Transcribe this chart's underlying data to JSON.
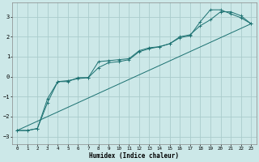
{
  "xlabel": "Humidex (Indice chaleur)",
  "background_color": "#cce8e8",
  "line_color": "#1a7070",
  "grid_color": "#aacccc",
  "xlim": [
    -0.5,
    23.5
  ],
  "ylim": [
    -3.4,
    3.7
  ],
  "xticks": [
    0,
    1,
    2,
    3,
    4,
    5,
    6,
    7,
    8,
    9,
    10,
    11,
    12,
    13,
    14,
    15,
    16,
    17,
    18,
    19,
    20,
    21,
    22,
    23
  ],
  "yticks": [
    -3,
    -2,
    -1,
    0,
    1,
    2,
    3
  ],
  "line1_x": [
    0,
    1,
    2,
    3,
    4,
    5,
    6,
    7,
    8,
    9,
    10,
    11,
    12,
    13,
    14,
    15,
    16,
    17,
    18,
    19,
    20,
    21,
    22,
    23
  ],
  "line1_y": [
    -2.7,
    -2.7,
    -2.6,
    -1.3,
    -0.25,
    -0.2,
    -0.1,
    -0.05,
    0.75,
    0.8,
    0.85,
    0.9,
    1.3,
    1.45,
    1.5,
    1.65,
    1.95,
    2.05,
    2.75,
    3.35,
    3.35,
    3.15,
    2.95,
    2.65
  ],
  "line2_x": [
    0,
    1,
    2,
    3,
    4,
    5,
    6,
    7,
    8,
    9,
    10,
    11,
    12,
    13,
    14,
    15,
    16,
    17,
    18,
    19,
    20,
    21,
    22,
    23
  ],
  "line2_y": [
    -2.7,
    -2.7,
    -2.6,
    -1.1,
    -0.25,
    -0.25,
    -0.05,
    -0.05,
    0.45,
    0.7,
    0.75,
    0.85,
    1.25,
    1.4,
    1.5,
    1.65,
    2.0,
    2.1,
    2.55,
    2.85,
    3.25,
    3.25,
    3.05,
    2.65
  ],
  "line3_x": [
    0,
    23
  ],
  "line3_y": [
    -2.7,
    2.65
  ],
  "marker": "+"
}
